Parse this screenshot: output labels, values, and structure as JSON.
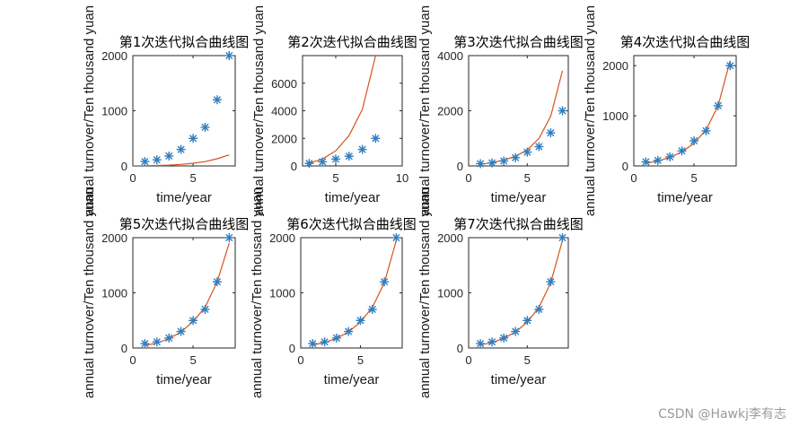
{
  "colors": {
    "marker": "#2f7ebf",
    "curve": "#d95319",
    "axis": "#262626"
  },
  "watermark": "CSDN @Hawkj李有志",
  "chart_data": [
    {
      "type": "scatter",
      "title": "第1次迭代拟合曲线图",
      "xlabel": "time/year",
      "ylabel": "annual turnover/Ten thousand yuan",
      "xlim": [
        0,
        8.5
      ],
      "ylim": [
        0,
        2000
      ],
      "xticks": [
        0,
        5
      ],
      "yticks": [
        0,
        1000,
        2000
      ],
      "points": {
        "x": [
          1,
          2,
          3,
          4,
          5,
          6,
          7,
          8
        ],
        "y": [
          80,
          110,
          180,
          300,
          500,
          700,
          1200,
          2000
        ]
      },
      "curve": {
        "x": [
          0,
          1,
          2,
          3,
          4,
          5,
          6,
          7,
          8
        ],
        "y": [
          0,
          3,
          8,
          15,
          28,
          48,
          78,
          130,
          200
        ]
      }
    },
    {
      "type": "scatter",
      "title": "第2次迭代拟合曲线图",
      "xlabel": "time/year",
      "ylabel": "annual turnover/Ten thousand yuan",
      "xlim": [
        2.5,
        10
      ],
      "ylim": [
        0,
        8000
      ],
      "xticks": [
        5,
        10
      ],
      "yticks": [
        0,
        2000,
        4000,
        6000
      ],
      "points": {
        "x": [
          3,
          4,
          5,
          6,
          7,
          8
        ],
        "y": [
          180,
          300,
          500,
          700,
          1200,
          2000
        ]
      },
      "curve": {
        "x": [
          3,
          4,
          5,
          6,
          7,
          8
        ],
        "y": [
          200,
          500,
          1100,
          2200,
          4100,
          8000
        ]
      }
    },
    {
      "type": "scatter",
      "title": "第3次迭代拟合曲线图",
      "xlabel": "time/year",
      "ylabel": "annual turnover/Ten thousand yuan",
      "xlim": [
        0,
        8.5
      ],
      "ylim": [
        0,
        4000
      ],
      "xticks": [
        0,
        5
      ],
      "yticks": [
        0,
        2000,
        4000
      ],
      "points": {
        "x": [
          1,
          2,
          3,
          4,
          5,
          6,
          7,
          8
        ],
        "y": [
          80,
          110,
          180,
          300,
          500,
          700,
          1200,
          2000
        ]
      },
      "curve": {
        "x": [
          1,
          2,
          3,
          4,
          5,
          6,
          7,
          8
        ],
        "y": [
          60,
          120,
          210,
          350,
          580,
          1000,
          1800,
          3450
        ]
      }
    },
    {
      "type": "scatter",
      "title": "第4次迭代拟合曲线图",
      "xlabel": "time/year",
      "ylabel": "annual turnover/Ten thousand yuan",
      "xlim": [
        0,
        8.5
      ],
      "ylim": [
        0,
        2200
      ],
      "xticks": [
        0,
        5
      ],
      "yticks": [
        0,
        1000,
        2000
      ],
      "points": {
        "x": [
          1,
          2,
          3,
          4,
          5,
          6,
          7,
          8
        ],
        "y": [
          80,
          110,
          180,
          300,
          500,
          700,
          1200,
          2000
        ]
      },
      "curve": {
        "x": [
          1,
          2,
          3,
          4,
          5,
          6,
          7,
          8
        ],
        "y": [
          50,
          100,
          170,
          280,
          450,
          720,
          1200,
          2100
        ]
      }
    },
    {
      "type": "scatter",
      "title": "第5次迭代拟合曲线图",
      "xlabel": "time/year",
      "ylabel": "annual turnover/Ten thousand yuan",
      "xlim": [
        0,
        8.5
      ],
      "ylim": [
        0,
        2000
      ],
      "xticks": [
        0,
        5
      ],
      "yticks": [
        0,
        1000,
        2000
      ],
      "points": {
        "x": [
          1,
          2,
          3,
          4,
          5,
          6,
          7,
          8
        ],
        "y": [
          80,
          110,
          180,
          300,
          500,
          700,
          1200,
          2000
        ]
      },
      "curve": {
        "x": [
          1,
          2,
          3,
          4,
          5,
          6,
          7,
          8
        ],
        "y": [
          45,
          90,
          170,
          290,
          480,
          740,
          1200,
          1900
        ]
      }
    },
    {
      "type": "scatter",
      "title": "第6次迭代拟合曲线图",
      "xlabel": "time/year",
      "ylabel": "annual turnover/Ten thousand yuan",
      "xlim": [
        0,
        8.5
      ],
      "ylim": [
        0,
        2000
      ],
      "xticks": [
        0,
        5
      ],
      "yticks": [
        0,
        1000,
        2000
      ],
      "points": {
        "x": [
          1,
          2,
          3,
          4,
          5,
          6,
          7,
          8
        ],
        "y": [
          80,
          110,
          180,
          300,
          500,
          700,
          1200,
          2000
        ]
      },
      "curve": {
        "x": [
          1,
          2,
          3,
          4,
          5,
          6,
          7,
          8
        ],
        "y": [
          55,
          100,
          175,
          290,
          470,
          740,
          1180,
          1950
        ]
      }
    },
    {
      "type": "scatter",
      "title": "第7次迭代拟合曲线图",
      "xlabel": "time/year",
      "ylabel": "annual turnover/Ten thousand yuan",
      "xlim": [
        0,
        8.5
      ],
      "ylim": [
        0,
        2000
      ],
      "xticks": [
        0,
        5
      ],
      "yticks": [
        0,
        1000,
        2000
      ],
      "points": {
        "x": [
          1,
          2,
          3,
          4,
          5,
          6,
          7,
          8
        ],
        "y": [
          80,
          110,
          180,
          300,
          500,
          700,
          1200,
          2000
        ]
      },
      "curve": {
        "x": [
          1,
          2,
          3,
          4,
          5,
          6,
          7,
          8
        ],
        "y": [
          55,
          100,
          175,
          290,
          470,
          740,
          1180,
          1950
        ]
      }
    }
  ]
}
